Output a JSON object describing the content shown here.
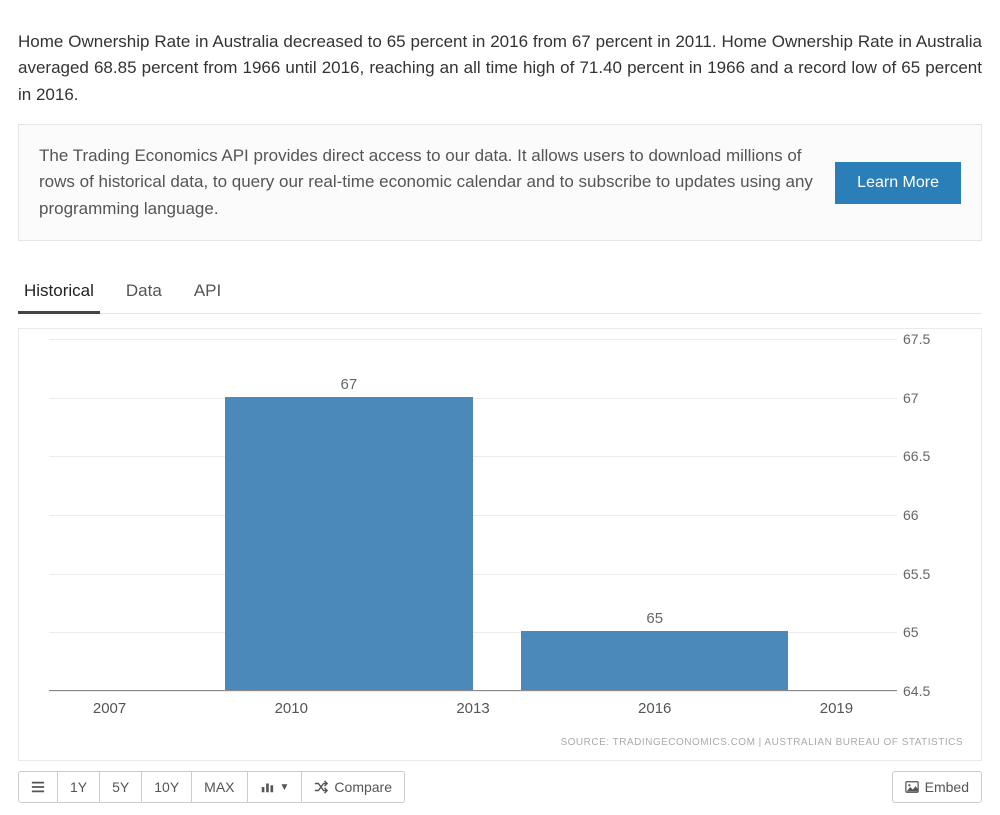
{
  "description": "Home Ownership Rate in Australia decreased to 65 percent in 2016 from 67 percent in 2011. Home Ownership Rate in Australia averaged 68.85 percent from 1966 until 2016, reaching an all time high of 71.40 percent in 1966 and a record low of 65 percent in 2016.",
  "promo": {
    "text": "The Trading Economics API provides direct access to our data. It allows users to download millions of rows of historical data, to query our real-time economic calendar and to subscribe to updates using any programming language.",
    "button": "Learn More"
  },
  "tabs": {
    "items": [
      "Historical",
      "Data",
      "API"
    ],
    "active_index": 0
  },
  "chart": {
    "type": "bar",
    "y_min": 64.5,
    "y_max": 67.5,
    "y_ticks": [
      64.5,
      65,
      65.5,
      66,
      66.5,
      67,
      67.5
    ],
    "x_min": 2006,
    "x_max": 2020,
    "x_ticks": [
      2007,
      2010,
      2013,
      2016,
      2019
    ],
    "bars": [
      {
        "x_start": 2008.9,
        "x_end": 2013.0,
        "value": 67,
        "label": "67"
      },
      {
        "x_start": 2013.8,
        "x_end": 2018.2,
        "value": 65,
        "label": "65"
      }
    ],
    "bar_color": "#4a89b9",
    "grid_color": "#ececec",
    "background": "#ffffff",
    "axis_font_size": 14,
    "bar_label_font_size": 15,
    "source": "SOURCE: TRADINGECONOMICS.COM | AUSTRALIAN BUREAU OF STATISTICS"
  },
  "toolbar": {
    "ranges": [
      "1Y",
      "5Y",
      "10Y",
      "MAX"
    ],
    "chart_type": "",
    "compare": "Compare",
    "embed": "Embed"
  }
}
